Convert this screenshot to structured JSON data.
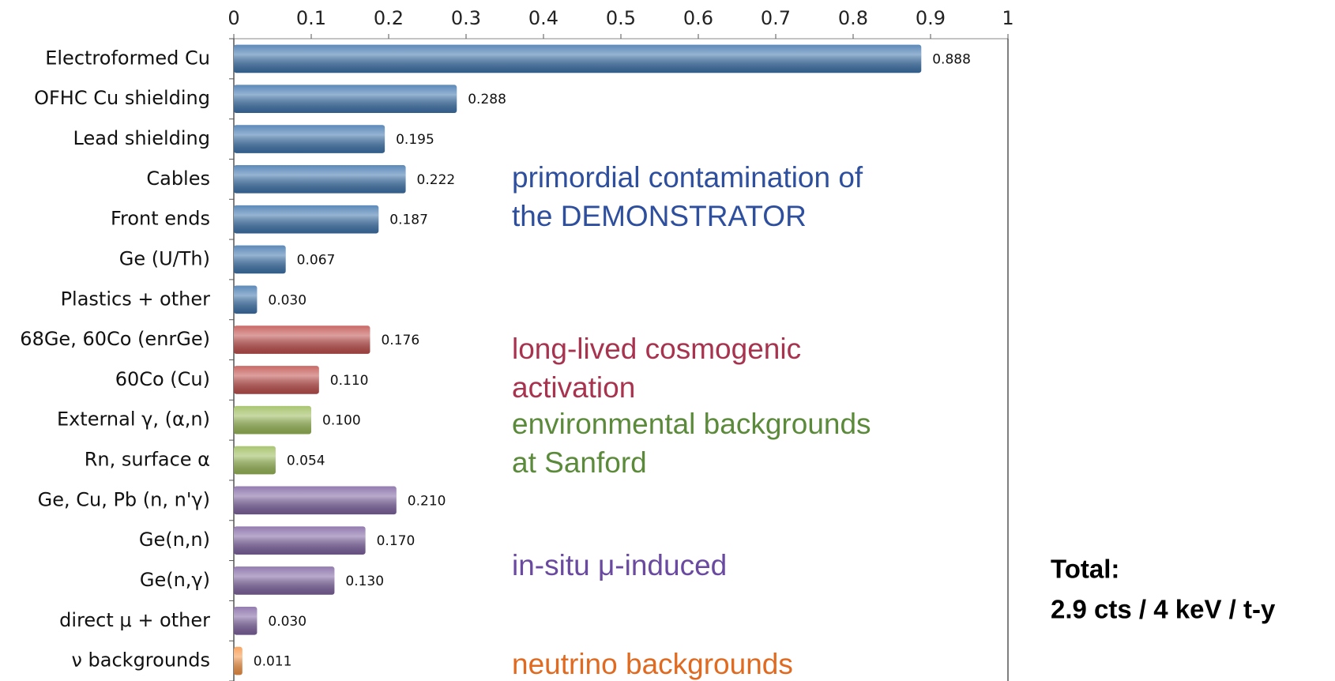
{
  "chart_data": {
    "type": "bar",
    "orientation": "horizontal",
    "categories": [
      "Electroformed Cu",
      "OFHC Cu shielding",
      "Lead shielding",
      "Cables",
      "Front ends",
      "Ge (U/Th)",
      "Plastics + other",
      "68Ge, 60Co (enrGe)",
      "60Co (Cu)",
      "External γ, (α,n)",
      "Rn, surface α",
      "Ge, Cu, Pb (n, n'γ)",
      "Ge(n,n)",
      "Ge(n,γ)",
      "direct μ + other",
      "ν backgrounds"
    ],
    "values": [
      0.888,
      0.288,
      0.195,
      0.222,
      0.187,
      0.067,
      0.03,
      0.176,
      0.11,
      0.1,
      0.054,
      0.21,
      0.17,
      0.13,
      0.03,
      0.011
    ],
    "value_labels": [
      "0.888",
      "0.288",
      "0.195",
      "0.222",
      "0.187",
      "0.067",
      "0.030",
      "0.176",
      "0.110",
      "0.100",
      "0.054",
      "0.210",
      "0.170",
      "0.130",
      "0.030",
      "0.011"
    ],
    "colors": [
      "#3f75ad",
      "#3f75ad",
      "#3f75ad",
      "#3f75ad",
      "#3f75ad",
      "#3f75ad",
      "#3f75ad",
      "#c0504d",
      "#c0504d",
      "#9bbb59",
      "#9bbb59",
      "#8064a2",
      "#8064a2",
      "#8064a2",
      "#8064a2",
      "#f79646"
    ],
    "xlim": [
      0,
      1
    ],
    "xticks": [
      0,
      0.1,
      0.2,
      0.3,
      0.4,
      0.5,
      0.6,
      0.7,
      0.8,
      0.9,
      1
    ],
    "annotations": [
      {
        "lines": [
          "primordial contamination of",
          "the DEMONSTRATOR"
        ],
        "color": "#2e4f9e"
      },
      {
        "lines": [
          "long-lived cosmogenic",
          "activation"
        ],
        "color": "#a8334f"
      },
      {
        "lines": [
          "environmental backgrounds",
          "at Sanford"
        ],
        "color": "#5a8a3a"
      },
      {
        "lines": [
          "in-situ μ-induced"
        ],
        "color": "#6a4aa0"
      },
      {
        "lines": [
          "neutrino backgrounds"
        ],
        "color": "#e06a20"
      }
    ],
    "total": [
      "Total:",
      "2.9 cts / 4 keV / t-y"
    ]
  }
}
